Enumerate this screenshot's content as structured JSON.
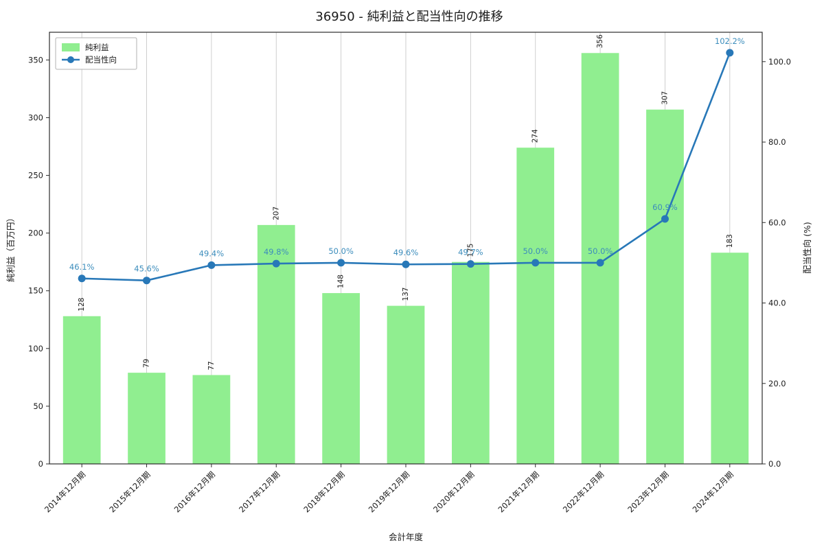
{
  "title": "36950 - 純利益と配当性向の推移",
  "chart_data": {
    "type": "bar+line",
    "categories": [
      "2014年12月期",
      "2015年12月期",
      "2016年12月期",
      "2017年12月期",
      "2018年12月期",
      "2019年12月期",
      "2020年12月期",
      "2021年12月期",
      "2022年12月期",
      "2023年12月期",
      "2024年12月期"
    ],
    "series": [
      {
        "name": "純利益",
        "type": "bar",
        "axis": "left",
        "color": "#90ee90",
        "values": [
          128,
          79,
          77,
          207,
          148,
          137,
          175,
          274,
          356,
          307,
          183
        ]
      },
      {
        "name": "配当性向",
        "type": "line",
        "axis": "right",
        "color": "#2878b8",
        "values": [
          46.1,
          45.6,
          49.4,
          49.8,
          50.0,
          49.6,
          49.7,
          50.0,
          50.0,
          60.9,
          102.2
        ]
      }
    ],
    "bar_labels": [
      "128",
      "79",
      "77",
      "207",
      "148",
      "137",
      "175",
      "274",
      "356",
      "307",
      "183"
    ],
    "point_labels": [
      "46.1%",
      "45.6%",
      "49.4%",
      "49.8%",
      "50.0%",
      "49.6%",
      "49.7%",
      "50.0%",
      "50.0%",
      "60.9%",
      "102.2%"
    ],
    "xlabel": "会計年度",
    "ylabel_left": "純利益（百万円）",
    "ylabel_right": "配当性向 (%)",
    "ylim_left": [
      0,
      374
    ],
    "ylim_right": [
      0,
      107.3
    ],
    "yticks_left": {
      "values": [
        0,
        50,
        100,
        150,
        200,
        250,
        300,
        350
      ],
      "labels": [
        "0",
        "50",
        "100",
        "150",
        "200",
        "250",
        "300",
        "350"
      ]
    },
    "yticks_right": {
      "values": [
        0,
        20,
        40,
        60,
        80,
        100
      ],
      "labels": [
        "0.0",
        "20.0",
        "40.0",
        "60.0",
        "80.0",
        "100.0"
      ]
    },
    "grid": "vertical",
    "grid_color": "#c9c9c9",
    "point_label_color": "#3c8dbc",
    "legend_position": "upper-left"
  }
}
